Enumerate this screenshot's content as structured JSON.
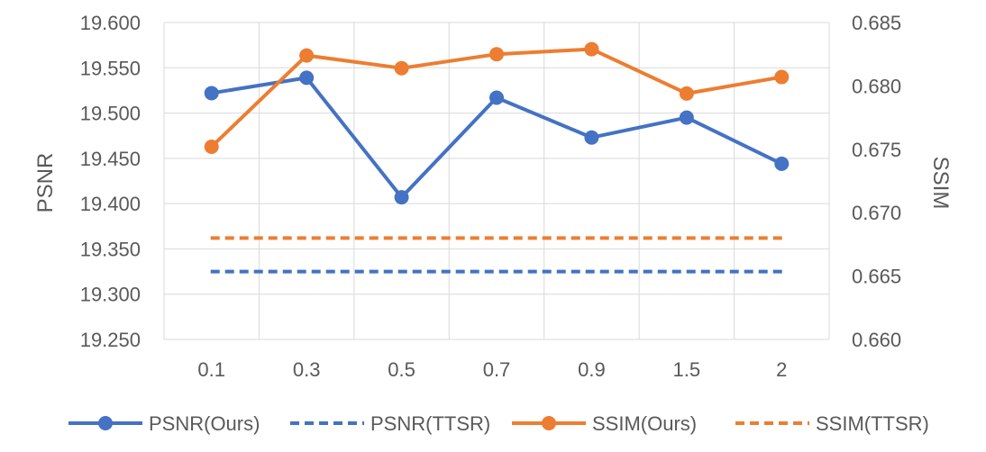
{
  "chart_data": {
    "type": "line",
    "categories": [
      "0.1",
      "0.3",
      "0.5",
      "0.7",
      "0.9",
      "1.5",
      "2"
    ],
    "y_left": {
      "label": "PSNR",
      "ylim": [
        19.25,
        19.6
      ],
      "ticks": [
        "19.250",
        "19.300",
        "19.350",
        "19.400",
        "19.450",
        "19.500",
        "19.550",
        "19.600"
      ]
    },
    "y_right": {
      "label": "SSIM",
      "ylim": [
        0.66,
        0.685
      ],
      "ticks": [
        "0.660",
        "0.665",
        "0.670",
        "0.675",
        "0.680",
        "0.685"
      ]
    },
    "grid": true,
    "legend_position": "bottom",
    "series": [
      {
        "name": "PSNR(Ours)",
        "axis": "left",
        "style": "solid-marker",
        "color": "#4472C4",
        "values": [
          19.522,
          19.539,
          19.407,
          19.517,
          19.473,
          19.495,
          19.444
        ]
      },
      {
        "name": "PSNR(TTSR)",
        "axis": "left",
        "style": "dashed",
        "color": "#4472C4",
        "values": [
          19.325,
          19.325,
          19.325,
          19.325,
          19.325,
          19.325,
          19.325
        ]
      },
      {
        "name": "SSIM(Ours)",
        "axis": "right",
        "style": "solid-marker",
        "color": "#ED7D31",
        "values": [
          0.6752,
          0.6824,
          0.6814,
          0.6825,
          0.6829,
          0.6794,
          0.6807
        ]
      },
      {
        "name": "SSIM(TTSR)",
        "axis": "right",
        "style": "dashed",
        "color": "#ED7D31",
        "values": [
          0.668,
          0.668,
          0.668,
          0.668,
          0.668,
          0.668,
          0.668
        ]
      }
    ]
  }
}
